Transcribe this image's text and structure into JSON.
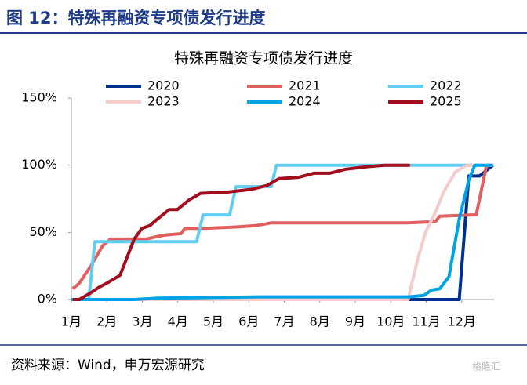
{
  "header": {
    "figure_title": "图 12：特殊再融资专项债发行进度"
  },
  "chart_data": {
    "type": "line",
    "title": "特殊再融资专项债发行进度",
    "xlim": [
      1,
      13
    ],
    "xticks": [
      {
        "value": 1,
        "label": "1月"
      },
      {
        "value": 2,
        "label": "2月"
      },
      {
        "value": 3,
        "label": "3月"
      },
      {
        "value": 4,
        "label": "4月"
      },
      {
        "value": 5,
        "label": "5月"
      },
      {
        "value": 6,
        "label": "6月"
      },
      {
        "value": 7,
        "label": "7月"
      },
      {
        "value": 8,
        "label": "8月"
      },
      {
        "value": 9,
        "label": "9月"
      },
      {
        "value": 10,
        "label": "10月"
      },
      {
        "value": 11,
        "label": "11月"
      },
      {
        "value": 12,
        "label": "12月"
      }
    ],
    "ylim": [
      0,
      150
    ],
    "yticks": [
      {
        "value": 0,
        "label": "0%"
      },
      {
        "value": 50,
        "label": "50%"
      },
      {
        "value": 100,
        "label": "100%"
      },
      {
        "value": 150,
        "label": "150%"
      }
    ],
    "grid": false,
    "series": [
      {
        "name": "2020",
        "color": "#002f8e",
        "x": [
          1,
          11.93,
          12.2,
          12.5,
          12.88
        ],
        "values": [
          0,
          0,
          92,
          92,
          100
        ]
      },
      {
        "name": "2021",
        "color": "#e25f5f",
        "x": [
          1.04,
          1.22,
          1.55,
          1.88,
          2.1,
          3.1,
          3.43,
          3.65,
          4.09,
          4.2,
          4.75,
          5.64,
          6.19,
          6.63,
          10.49,
          11.26,
          11.38,
          12.26,
          12.41,
          12.7,
          12.88
        ],
        "values": [
          8,
          12,
          25,
          40,
          45,
          45,
          47,
          48,
          49,
          53,
          53,
          54,
          55,
          57,
          57,
          58,
          62,
          63,
          63,
          100,
          100
        ]
      },
      {
        "name": "2022",
        "color": "#62cdf2",
        "x": [
          1,
          1.49,
          1.66,
          4.53,
          4.71,
          5.46,
          5.64,
          6.63,
          6.78,
          12.88
        ],
        "values": [
          0,
          0,
          43,
          43,
          63,
          63,
          84,
          84,
          100,
          100
        ]
      },
      {
        "name": "2023",
        "color": "#f5cccc",
        "x": [
          1,
          10.49,
          10.76,
          10.98,
          11.26,
          11.49,
          11.82,
          12.15,
          12.88
        ],
        "values": [
          0,
          0,
          30,
          50,
          65,
          80,
          95,
          100,
          100
        ]
      },
      {
        "name": "2024",
        "color": "#00a3e3",
        "x": [
          1,
          2.77,
          3.43,
          6.3,
          10.49,
          10.93,
          11.15,
          11.38,
          11.64,
          11.93,
          12.21,
          12.37,
          12.88
        ],
        "values": [
          0,
          0,
          1,
          2,
          2,
          3,
          7,
          8,
          17,
          60,
          90,
          100,
          100
        ]
      },
      {
        "name": "2025",
        "color": "#a30d1e",
        "x": [
          1.04,
          1.22,
          1.55,
          1.77,
          1.99,
          2.37,
          2.55,
          2.77,
          2.99,
          3.21,
          3.43,
          3.76,
          3.99,
          4.31,
          4.64,
          5.42,
          6.08,
          6.52,
          6.85,
          7.4,
          7.84,
          8.28,
          8.73,
          9.39,
          9.83,
          10.54
        ],
        "values": [
          0,
          0,
          5,
          9,
          12,
          18,
          30,
          45,
          53,
          55,
          60,
          67,
          67,
          74,
          79,
          80,
          82,
          85,
          90,
          91,
          94,
          94,
          97,
          99,
          100,
          100
        ]
      }
    ]
  },
  "footer": {
    "source": "资料来源：Wind，申万宏源研究",
    "watermark": "格隆汇"
  }
}
